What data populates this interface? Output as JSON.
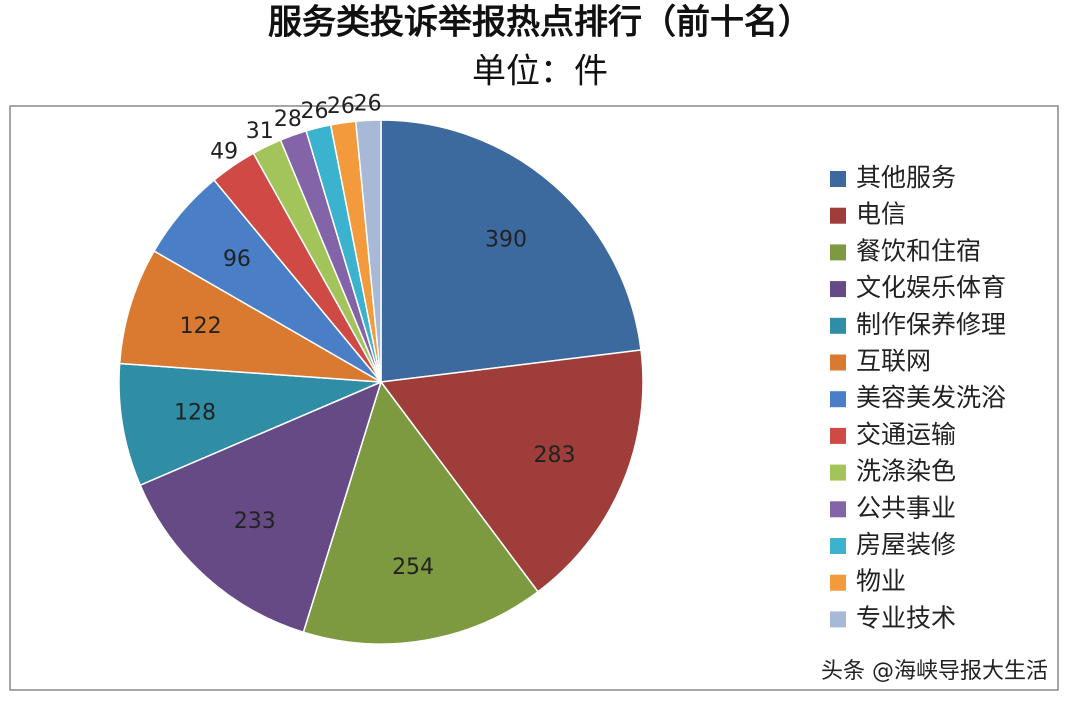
{
  "chart_data": {
    "type": "pie",
    "title": "服务类投诉举报热点排行（前十名）",
    "subtitle": "单位：件",
    "categories": [
      "其他服务",
      "电信",
      "餐饮和住宿",
      "文化娱乐体育",
      "制作保养修理",
      "互联网",
      "美容美发洗浴",
      "交通运输",
      "洗涤染色",
      "公共事业",
      "房屋装修",
      "物业",
      "专业技术"
    ],
    "values": [
      390,
      283,
      254,
      233,
      128,
      122,
      96,
      49,
      31,
      28,
      26,
      26,
      26
    ],
    "colors": [
      "#3d6a9e",
      "#9e3d3a",
      "#7d9a41",
      "#654a85",
      "#2f8ea6",
      "#d97a30",
      "#4a7fc7",
      "#cf4a45",
      "#a3c45a",
      "#8364a8",
      "#3bb3cf",
      "#f29a3c",
      "#a8b9d8"
    ],
    "legend": "right",
    "watermark": "头条 @海峡导报大生活"
  }
}
